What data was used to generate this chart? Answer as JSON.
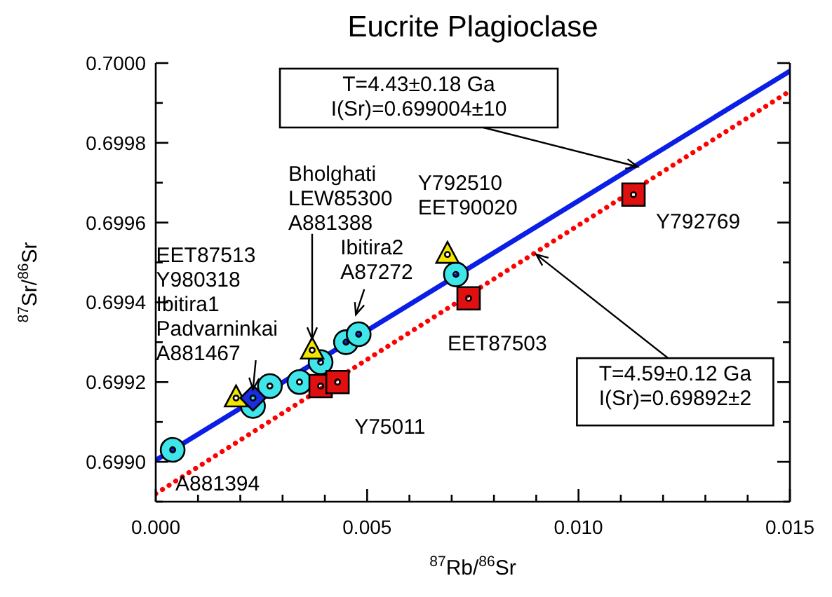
{
  "chart_data": {
    "type": "scatter",
    "title": "Eucrite Plagioclase",
    "xlabel": "$^{87}$Rb/$^{86}$Sr",
    "ylabel": "$^{87}$Sr/$^{86}$Sr",
    "xlim": [
      0,
      0.015
    ],
    "xticks": [
      {
        "value": 0,
        "label": "0.000"
      },
      {
        "value": 0.001,
        "label": null
      },
      {
        "value": 0.002,
        "label": null
      },
      {
        "value": 0.003,
        "label": null
      },
      {
        "value": 0.004,
        "label": null
      },
      {
        "value": 0.005,
        "label": "0.005"
      },
      {
        "value": 0.006,
        "label": null
      },
      {
        "value": 0.007,
        "label": null
      },
      {
        "value": 0.008,
        "label": null
      },
      {
        "value": 0.009,
        "label": null
      },
      {
        "value": 0.01,
        "label": "0.010"
      },
      {
        "value": 0.011,
        "label": null
      },
      {
        "value": 0.012,
        "label": null
      },
      {
        "value": 0.013,
        "label": null
      },
      {
        "value": 0.014,
        "label": null
      },
      {
        "value": 0.015,
        "label": "0.015"
      }
    ],
    "ylim": [
      0.6989,
      0.7
    ],
    "yticks": [
      {
        "value": 0.6989,
        "label": null
      },
      {
        "value": 0.699,
        "label": "0.6990"
      },
      {
        "value": 0.6991,
        "label": null
      },
      {
        "value": 0.6992,
        "label": "0.6992"
      },
      {
        "value": 0.6993,
        "label": null
      },
      {
        "value": 0.6994,
        "label": "0.6994"
      },
      {
        "value": 0.6995,
        "label": null
      },
      {
        "value": 0.6996,
        "label": "0.6996"
      },
      {
        "value": 0.6997,
        "label": null
      },
      {
        "value": 0.6998,
        "label": "0.6998"
      },
      {
        "value": 0.6999,
        "label": null
      },
      {
        "value": 0.7,
        "label": "0.7000"
      }
    ],
    "series": [
      {
        "type": "line",
        "color": "#0a1ee6",
        "line_style": "solid",
        "marker": "none",
        "x": [
          0,
          0.015
        ],
        "values": [
          0.699004,
          0.69998
        ]
      },
      {
        "type": "line",
        "color": "#ff0000",
        "line_style": "dotted",
        "marker": "none",
        "x": [
          0,
          0.015
        ],
        "values": [
          0.69892,
          0.69993
        ]
      },
      {
        "type": "scatter",
        "color": "#3ee6ea",
        "marker": "circle",
        "x": [
          0.0004,
          0.0023,
          0.0027,
          0.0034,
          0.0039,
          0.0045,
          0.0048,
          0.0071
        ],
        "values": [
          0.69903,
          0.69914,
          0.69919,
          0.6992,
          0.69925,
          0.6993,
          0.69932,
          0.69947
        ]
      },
      {
        "type": "scatter",
        "color": "#f2e600",
        "marker": "triangle",
        "x": [
          0.0019,
          0.0037,
          0.0069
        ],
        "values": [
          0.69916,
          0.69928,
          0.69952
        ]
      },
      {
        "type": "scatter",
        "color": "#1a2ee0",
        "marker": "diamond",
        "x": [
          0.0023
        ],
        "values": [
          0.69916
        ]
      },
      {
        "type": "scatter",
        "color": "#e01010",
        "marker": "square",
        "x": [
          0.0039,
          0.0043,
          0.0074,
          0.0113
        ],
        "values": [
          0.69919,
          0.6992,
          0.69941,
          0.69967
        ]
      }
    ],
    "annotations": [
      {
        "text": "EET87513\nY980318\nIbitira1\nPadvarninkai\nA881467",
        "x": 0.0023,
        "y": 0.69916
      },
      {
        "text": "Bholghati\nLEW85300\nA881388",
        "x": 0.0037,
        "y": 0.69928
      },
      {
        "text": "Ibitira2\nA87272",
        "x": 0.0048,
        "y": 0.69932
      },
      {
        "text": "Y792510\nEET90020",
        "x": 0.0069,
        "y": 0.69952
      },
      {
        "text": "Y792769",
        "x": 0.0113,
        "y": 0.69967
      },
      {
        "text": "EET87503",
        "x": 0.0074,
        "y": 0.69941
      },
      {
        "text": "Y75011",
        "x": 0.0043,
        "y": 0.6992
      },
      {
        "text": "A881394",
        "x": 0.0004,
        "y": 0.69903
      },
      {
        "text": "T=4.43±0.18 Ga\nI(Sr)=0.699004±10",
        "x": 0.0114,
        "y": 0.69974
      },
      {
        "text": "T=4.59±0.12 Ga\nI(Sr)=0.69892±2",
        "x": 0.009,
        "y": 0.69952
      }
    ]
  }
}
